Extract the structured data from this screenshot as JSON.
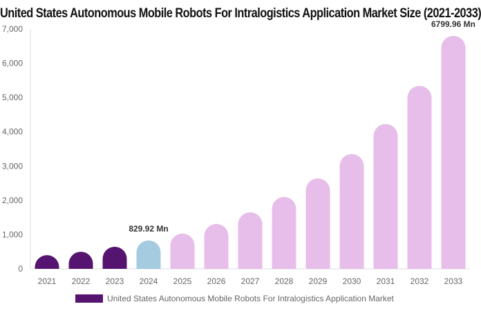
{
  "chart_data": {
    "type": "bar",
    "title": "United States Autonomous Mobile Robots For Intralogistics Application Market Size (2021-2033)",
    "categories": [
      "2021",
      "2022",
      "2023",
      "2024",
      "2025",
      "2026",
      "2027",
      "2028",
      "2029",
      "2030",
      "2031",
      "2032",
      "2033"
    ],
    "series": [
      {
        "name": "United States Autonomous Mobile Robots For Intralogistics Application Market",
        "values": [
          400,
          500,
          645,
          829.92,
          1030,
          1310,
          1650,
          2100,
          2640,
          3350,
          4230,
          5340,
          6799.96
        ]
      }
    ],
    "bar_colors": [
      "#55146f",
      "#55146f",
      "#55146f",
      "#a4cbe0",
      "#e7bde9",
      "#e7bde9",
      "#e7bde9",
      "#e7bde9",
      "#e7bde9",
      "#e7bde9",
      "#e7bde9",
      "#e7bde9",
      "#e7bde9"
    ],
    "data_labels": {
      "2024": "829.92 Mn",
      "2033": "6799.96 Mn"
    },
    "ylim": [
      0,
      7000
    ],
    "yticks": [
      "0",
      "1,000",
      "2,000",
      "3,000",
      "4,000",
      "5,000",
      "6,000",
      "7,000"
    ],
    "grid": false,
    "legend_position": "bottom"
  }
}
